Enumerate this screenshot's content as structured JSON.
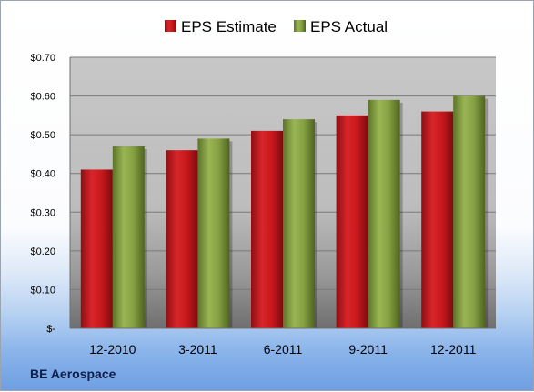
{
  "company": "BE Aerospace",
  "chart_data": {
    "type": "bar",
    "title": "",
    "xlabel": "",
    "ylabel": "",
    "categories": [
      "12-2010",
      "3-2011",
      "6-2011",
      "9-2011",
      "12-2011"
    ],
    "series": [
      {
        "name": "EPS Estimate",
        "values": [
          0.41,
          0.46,
          0.51,
          0.55,
          0.56
        ],
        "color": "#c8181c"
      },
      {
        "name": "EPS Actual",
        "values": [
          0.47,
          0.49,
          0.54,
          0.59,
          0.6
        ],
        "color": "#7f9a3e"
      }
    ],
    "ylim": [
      0,
      0.7
    ],
    "yticks": [
      0,
      0.1,
      0.2,
      0.3,
      0.4,
      0.5,
      0.6,
      0.7
    ],
    "ytick_labels": [
      "$-",
      "$0.10",
      "$0.20",
      "$0.30",
      "$0.40",
      "$0.50",
      "$0.60",
      "$0.70"
    ],
    "grid": true,
    "legend_position": "top-center"
  }
}
